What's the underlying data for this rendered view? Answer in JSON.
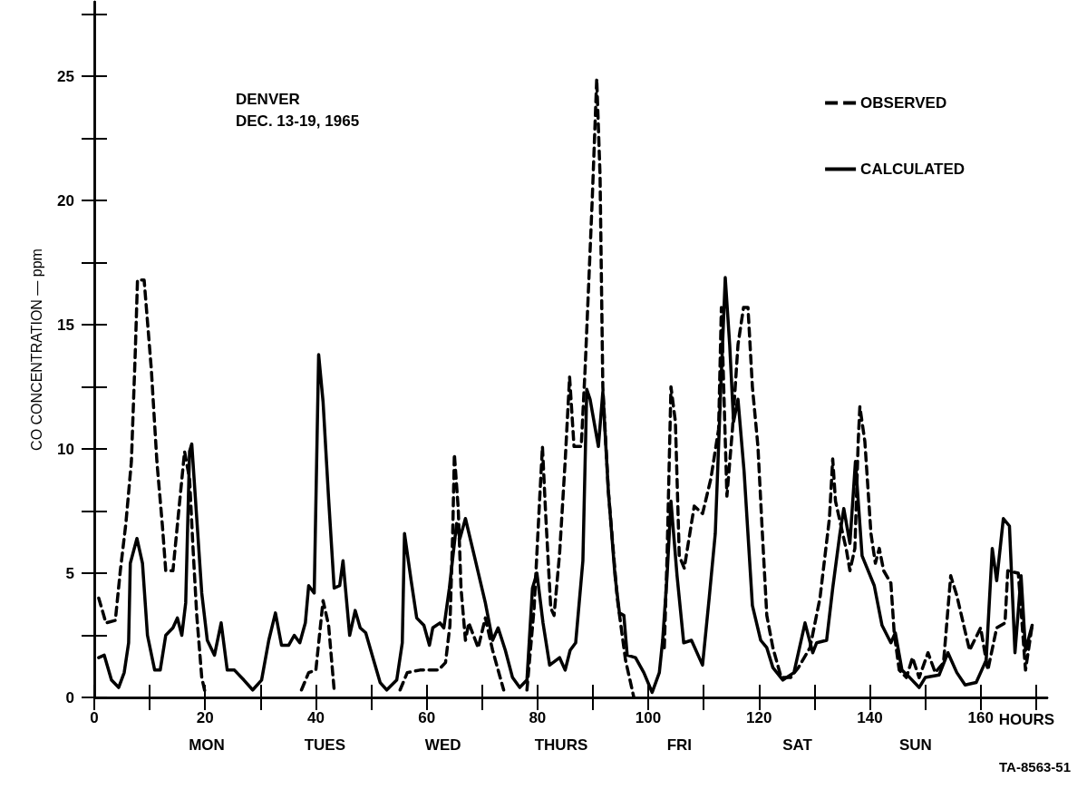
{
  "chart_data": {
    "type": "line",
    "title": "DENVER\nDEC. 13-19, 1965",
    "xlabel": "HOURS",
    "ylabel": "CO CONCENTRATION — ppm",
    "annotations": [
      "MON",
      "TUES",
      "WED",
      "THURS",
      "FRI",
      "SAT",
      "SUN",
      "TA-8563-51"
    ],
    "xlim": [
      0,
      172
    ],
    "ylim": [
      0,
      28
    ],
    "xticks": [
      0,
      {
        "value": 10,
        "label": null
      },
      20,
      {
        "value": 30,
        "label": null
      },
      40,
      {
        "value": 50,
        "label": null
      },
      60,
      {
        "value": 70,
        "label": null
      },
      80,
      {
        "value": 90,
        "label": null
      },
      100,
      {
        "value": 110,
        "label": null
      },
      120,
      {
        "value": 130,
        "label": null
      },
      140,
      {
        "value": 150,
        "label": null
      },
      160,
      {
        "value": 170,
        "label": null
      }
    ],
    "yticks": [
      0,
      {
        "value": 2.5,
        "label": null
      },
      5,
      {
        "value": 7.5,
        "label": null
      },
      10,
      {
        "value": 12.5,
        "label": null
      },
      15,
      {
        "value": 17.5,
        "label": null
      },
      20,
      {
        "value": 22.5,
        "label": null
      },
      25,
      {
        "value": 27.5,
        "label": null
      }
    ],
    "grid": false,
    "legend": "top right",
    "marker": "none",
    "series": [
      {
        "name": "OBSERVED",
        "color": "#000000",
        "line_style": "dashed",
        "x": [
          0.8,
          2.1,
          3.8,
          4.7,
          5.7,
          6.7,
          7.4,
          7.8,
          9.0,
          10.3,
          11.3,
          12.3,
          12.9,
          14.2,
          15.2,
          16.3,
          17.2,
          17.8,
          18.5,
          19.4,
          20.1,
          28,
          37.4,
          38.7,
          40,
          41.3,
          42.3,
          43.3,
          50,
          55.2,
          56.5,
          58.8,
          62.1,
          63.4,
          64.2,
          64.7,
          65.0,
          65.7,
          66.2,
          67.0,
          67.6,
          69.3,
          70.6,
          71.9,
          73.9,
          76,
          78.1,
          79.4,
          80.4,
          80.9,
          81.5,
          82.4,
          83.0,
          84.0,
          85.0,
          85.8,
          86.6,
          87.9,
          88.6,
          89.9,
          90.7,
          91.3,
          91.8,
          92.8,
          94.4,
          95.9,
          97.4,
          100,
          102.9,
          103.4,
          104.1,
          104.9,
          105.6,
          106.5,
          108.3,
          109.8,
          111.3,
          112.7,
          113.2,
          114.2,
          115.2,
          116.2,
          117.2,
          118.0,
          118.8,
          119.8,
          120.6,
          121.4,
          122.5,
          124.0,
          125.7,
          127.1,
          129.2,
          131.0,
          132.7,
          133.3,
          133.8,
          134.6,
          135.8,
          136.4,
          137.3,
          137.9,
          138.2,
          139.1,
          140.2,
          141.0,
          141.7,
          142.5,
          143.8,
          144.4,
          145.3,
          146.6,
          147.7,
          148.9,
          150.5,
          151.8,
          153.3,
          154.6,
          155.7,
          158.0,
          160.0,
          161.3,
          162.9,
          164.4,
          164.9,
          166.8,
          168.1,
          169.3
        ],
        "values": [
          4.0,
          3.0,
          3.1,
          5.1,
          7.0,
          9.5,
          13.9,
          16.8,
          16.8,
          13.2,
          9.5,
          6.9,
          5.1,
          5.1,
          7.4,
          9.9,
          8.8,
          6.1,
          3.3,
          0.8,
          0.1,
          null,
          0.3,
          1.0,
          1.1,
          3.9,
          2.9,
          0.3,
          null,
          0.3,
          1.0,
          1.1,
          1.1,
          1.4,
          2.9,
          6.6,
          9.8,
          7.6,
          4.4,
          2.3,
          3.0,
          2.0,
          3.2,
          1.9,
          0.3,
          null,
          0.3,
          3.6,
          8.0,
          10.1,
          7.3,
          3.6,
          3.3,
          5.8,
          9.5,
          12.9,
          10.1,
          10.1,
          13.2,
          20.1,
          24.9,
          21.0,
          12.5,
          8.3,
          4.0,
          1.5,
          0,
          null,
          2.0,
          5.7,
          12.5,
          11.1,
          5.7,
          5.2,
          7.7,
          7.4,
          8.8,
          10.8,
          15.7,
          8.1,
          10.8,
          14.2,
          15.7,
          15.7,
          12.5,
          10.1,
          6.6,
          3.3,
          2.0,
          0.8,
          0.8,
          1.2,
          2.0,
          4.0,
          7.2,
          9.6,
          7.9,
          7.1,
          5.9,
          5.1,
          6.0,
          10.3,
          11.7,
          10.3,
          6.6,
          5.4,
          6.0,
          5.1,
          4.6,
          2.6,
          1.1,
          0.8,
          1.6,
          0.8,
          1.8,
          1.0,
          1.4,
          4.9,
          4.1,
          1.9,
          2.8,
          1.1,
          2.8,
          3.0,
          5.1,
          5.0,
          1.1,
          2.9
        ]
      },
      {
        "name": "CALCULATED",
        "color": "#000000",
        "line_style": "solid",
        "x": [
          0.8,
          1.8,
          3.1,
          4.4,
          5.4,
          6.2,
          6.5,
          7.7,
          8.7,
          9.6,
          10.9,
          11.9,
          12.9,
          14.2,
          15.0,
          15.8,
          16.5,
          17.2,
          17.6,
          18.5,
          19.4,
          20.4,
          21.7,
          22.9,
          24.0,
          25.3,
          27.0,
          28.6,
          30.2,
          31.5,
          32.7,
          33.8,
          35.1,
          36.1,
          37.1,
          38.1,
          38.7,
          39.7,
          40.5,
          41.3,
          42.3,
          43.3,
          44.3,
          44.9,
          46.1,
          47.1,
          48.0,
          49.0,
          50.3,
          51.6,
          52.8,
          54.6,
          55.6,
          56.0,
          57.2,
          58.2,
          59.5,
          60.5,
          61.1,
          62.4,
          63.1,
          64.1,
          65.4,
          66.0,
          67.0,
          68.6,
          70.6,
          71.9,
          72.9,
          74.2,
          75.5,
          76.8,
          78.1,
          79.1,
          79.9,
          81.0,
          82.2,
          84.0,
          85.0,
          85.9,
          86.9,
          88.2,
          88.9,
          89.5,
          91.0,
          91.8,
          92.8,
          94.0,
          94.8,
          95.6,
          96.2,
          97.7,
          99.2,
          100.7,
          102.0,
          102.6,
          103.4,
          104.1,
          105.2,
          106.4,
          107.8,
          109.8,
          111.0,
          112.1,
          113.1,
          113.9,
          114.7,
          115.4,
          116.2,
          117.3,
          118.8,
          120.3,
          121.4,
          122.5,
          124.3,
          126.3,
          128.3,
          129.7,
          130.4,
          132.2,
          133.3,
          134.6,
          135.3,
          136.4,
          137.4,
          138.6,
          140.8,
          142.2,
          143.8,
          144.6,
          145.8,
          147.2,
          148.9,
          150.0,
          152.5,
          154.1,
          155.7,
          157.2,
          159.2,
          161.0,
          162.1,
          162.9,
          164.1,
          165.2,
          166.2,
          167.3,
          168.1,
          169.3
        ],
        "values": [
          1.6,
          1.7,
          0.7,
          0.4,
          1.0,
          2.2,
          5.4,
          6.4,
          5.4,
          2.5,
          1.1,
          1.1,
          2.5,
          2.8,
          3.2,
          2.5,
          3.8,
          9.9,
          10.2,
          7.2,
          4.2,
          2.3,
          1.7,
          3.0,
          1.1,
          1.1,
          0.7,
          0.3,
          0.7,
          2.3,
          3.4,
          2.1,
          2.1,
          2.5,
          2.2,
          3.0,
          4.5,
          4.2,
          13.8,
          11.9,
          8.0,
          4.4,
          4.5,
          5.5,
          2.5,
          3.5,
          2.8,
          2.6,
          1.6,
          0.6,
          0.3,
          0.7,
          2.2,
          6.6,
          4.7,
          3.2,
          2.9,
          2.1,
          2.8,
          3.0,
          2.8,
          4.4,
          7.0,
          6.4,
          7.2,
          5.7,
          3.8,
          2.3,
          2.8,
          1.9,
          0.8,
          0.4,
          0.7,
          4.4,
          5.0,
          3.0,
          1.3,
          1.6,
          1.1,
          1.9,
          2.2,
          5.5,
          12.4,
          12.0,
          10.1,
          12.3,
          8.3,
          4.9,
          3.4,
          3.3,
          1.7,
          1.6,
          1.0,
          0.2,
          1.0,
          2.3,
          4.9,
          7.9,
          4.9,
          2.2,
          2.3,
          1.3,
          4.0,
          6.6,
          12.5,
          16.9,
          14.2,
          11.1,
          12.0,
          9.1,
          3.7,
          2.3,
          2.0,
          1.2,
          0.7,
          1.0,
          3.0,
          1.8,
          2.2,
          2.3,
          4.4,
          6.6,
          7.6,
          6.2,
          9.5,
          5.7,
          4.5,
          2.9,
          2.2,
          2.6,
          1.1,
          0.8,
          0.4,
          0.8,
          0.9,
          1.8,
          1.0,
          0.5,
          0.6,
          1.5,
          6.0,
          4.7,
          7.2,
          6.9,
          1.8,
          4.9,
          1.9,
          2.9
        ]
      }
    ]
  }
}
